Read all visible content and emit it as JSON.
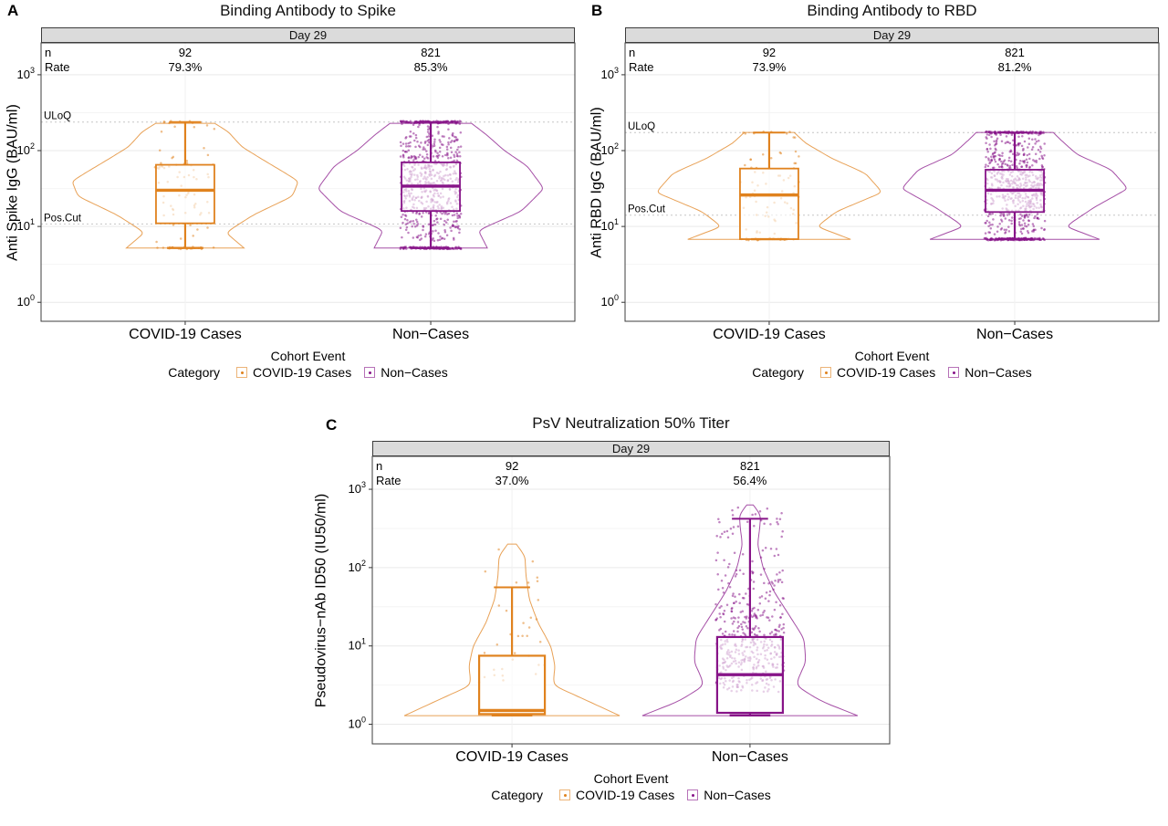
{
  "figure": {
    "style": {
      "background": "#ffffff",
      "facet_strip_fill": "#DBDBDB",
      "orange": "#E0821E",
      "purple": "#871488",
      "grid_major": "#E9E9E9",
      "grid_minor": "#F4F4F4",
      "reference_line": "#C6C6C6",
      "plot_border": "#3C3C3C"
    }
  },
  "chart_data": [
    {
      "type": "violin+box+jitter",
      "panel_letter": "A",
      "title": "Binding Antibody to Spike",
      "facet_label": "Day 29",
      "xlabel": "Cohort Event",
      "ylabel": "Anti Spike IgG (BAU/ml)",
      "y_scale": "log10",
      "y_tick_exponents": [
        0,
        1,
        2,
        3
      ],
      "ylim_log10": [
        -0.25,
        3.42
      ],
      "grid": "horizontal major+minor, faint vertical at groups",
      "legend_title": "Category",
      "legend_position": "bottom",
      "annotation_row_labels": [
        "n",
        "Rate"
      ],
      "reference_lines": [
        {
          "label": "ULoQ",
          "value": 238
        },
        {
          "label": "Pos.Cut",
          "value": 10.8
        }
      ],
      "groups": [
        {
          "name": "COVID-19 Cases",
          "color": "#E0821E",
          "n": 92,
          "response_rate": "79.3%",
          "box": {
            "whisker_low": 5.2,
            "q1": 11,
            "median": 30,
            "q3": 65,
            "whisker_high": 238
          },
          "points": {
            "mode": "all-with-floor",
            "floor_value": 5.2,
            "at_uloq_fraction": 0.1,
            "sample_range_log10": [
              0.8,
              2.36
            ]
          },
          "violin_profile_log10": [
            [
              0.716,
              0.52
            ],
            [
              0.92,
              0.36
            ],
            [
              1.15,
              0.6
            ],
            [
              1.4,
              0.95
            ],
            [
              1.6,
              1.0
            ],
            [
              1.85,
              0.72
            ],
            [
              2.05,
              0.5
            ],
            [
              2.25,
              0.38
            ],
            [
              2.36,
              0.26
            ]
          ]
        },
        {
          "name": "Non−Cases",
          "color": "#871488",
          "n": 821,
          "response_rate": "85.3%",
          "box": {
            "whisker_low": 5.2,
            "q1": 16,
            "median": 34,
            "q3": 70,
            "whisker_high": 238
          },
          "points": {
            "mode": "all-with-floor",
            "floor_value": 5.2,
            "at_uloq_fraction": 0.17,
            "sample_range_log10": [
              0.8,
              2.36
            ]
          },
          "violin_profile_log10": [
            [
              0.716,
              0.5
            ],
            [
              0.95,
              0.42
            ],
            [
              1.2,
              0.8
            ],
            [
              1.5,
              1.0
            ],
            [
              1.8,
              0.85
            ],
            [
              2.0,
              0.65
            ],
            [
              2.2,
              0.5
            ],
            [
              2.36,
              0.36
            ]
          ]
        }
      ]
    },
    {
      "type": "violin+box+jitter",
      "panel_letter": "B",
      "title": "Binding Antibody to RBD",
      "facet_label": "Day 29",
      "xlabel": "Cohort Event",
      "ylabel": "Anti RBD IgG (BAU/ml)",
      "y_scale": "log10",
      "y_tick_exponents": [
        0,
        1,
        2,
        3
      ],
      "ylim_log10": [
        -0.25,
        3.42
      ],
      "grid": "horizontal major+minor, faint vertical at groups",
      "legend_title": "Category",
      "legend_position": "bottom",
      "annotation_row_labels": [
        "n",
        "Rate"
      ],
      "reference_lines": [
        {
          "label": "ULoQ",
          "value": 173
        },
        {
          "label": "Pos.Cut",
          "value": 14.1
        }
      ],
      "groups": [
        {
          "name": "COVID-19 Cases",
          "color": "#E0821E",
          "n": 92,
          "response_rate": "73.9%",
          "box": {
            "whisker_low": 6.8,
            "q1": 6.8,
            "median": 26,
            "q3": 58,
            "whisker_high": 173
          },
          "points": {
            "mode": "all-with-floor",
            "floor_value": 6.8,
            "at_uloq_fraction": 0.1,
            "sample_range_log10": [
              0.9,
              2.23
            ]
          },
          "violin_profile_log10": [
            [
              0.83,
              0.72
            ],
            [
              1.0,
              0.42
            ],
            [
              1.2,
              0.6
            ],
            [
              1.45,
              1.0
            ],
            [
              1.7,
              0.85
            ],
            [
              1.9,
              0.55
            ],
            [
              2.1,
              0.32
            ],
            [
              2.24,
              0.22
            ]
          ]
        },
        {
          "name": "Non−Cases",
          "color": "#871488",
          "n": 821,
          "response_rate": "81.2%",
          "box": {
            "whisker_low": 6.8,
            "q1": 15.5,
            "median": 30,
            "q3": 56,
            "whisker_high": 173
          },
          "points": {
            "mode": "all-with-floor",
            "floor_value": 6.8,
            "at_uloq_fraction": 0.15,
            "sample_range_log10": [
              0.9,
              2.23
            ]
          },
          "violin_profile_log10": [
            [
              0.83,
              0.75
            ],
            [
              1.0,
              0.45
            ],
            [
              1.25,
              0.7
            ],
            [
              1.5,
              1.0
            ],
            [
              1.75,
              0.85
            ],
            [
              1.95,
              0.55
            ],
            [
              2.15,
              0.4
            ],
            [
              2.24,
              0.34
            ]
          ]
        }
      ]
    },
    {
      "type": "violin+box+jitter",
      "panel_letter": "C",
      "title": "PsV Neutralization 50% Titer",
      "facet_label": "Day 29",
      "xlabel": "Cohort Event",
      "ylabel": "Pseudovirus−nAb ID50 (IU50/ml)",
      "y_scale": "log10",
      "y_tick_exponents": [
        0,
        1,
        2,
        3
      ],
      "ylim_log10": [
        -0.25,
        3.42
      ],
      "grid": "horizontal major+minor, faint vertical at groups",
      "legend_title": "Category",
      "legend_position": "bottom",
      "annotation_row_labels": [
        "n",
        "Rate"
      ],
      "reference_lines": [],
      "groups": [
        {
          "name": "COVID-19 Cases",
          "color": "#E0821E",
          "n": 92,
          "response_rate": "37.0%",
          "box": {
            "whisker_low": 1.3,
            "q1": 1.35,
            "median": 1.5,
            "q3": 7.5,
            "whisker_high": 56
          },
          "points": {
            "mode": "responders-only",
            "sample_range_log10": [
              0.5,
              2.3
            ]
          },
          "violin_profile_log10": [
            [
              0.11,
              1.0
            ],
            [
              0.3,
              0.7
            ],
            [
              0.5,
              0.38
            ],
            [
              0.75,
              0.4
            ],
            [
              1.0,
              0.36
            ],
            [
              1.3,
              0.24
            ],
            [
              1.6,
              0.16
            ],
            [
              1.9,
              0.13
            ],
            [
              2.15,
              0.12
            ],
            [
              2.3,
              0.04
            ]
          ]
        },
        {
          "name": "Non−Cases",
          "color": "#871488",
          "n": 821,
          "response_rate": "56.4%",
          "box": {
            "whisker_low": 1.3,
            "q1": 1.4,
            "median": 4.3,
            "q3": 13,
            "whisker_high": 420
          },
          "points": {
            "mode": "responders-only",
            "sample_range_log10": [
              0.42,
              2.8
            ]
          },
          "violin_profile_log10": [
            [
              0.11,
              1.0
            ],
            [
              0.3,
              0.65
            ],
            [
              0.5,
              0.42
            ],
            [
              0.8,
              0.52
            ],
            [
              1.1,
              0.5
            ],
            [
              1.4,
              0.36
            ],
            [
              1.7,
              0.22
            ],
            [
              2.0,
              0.12
            ],
            [
              2.3,
              0.07
            ],
            [
              2.5,
              0.09
            ],
            [
              2.68,
              0.1
            ],
            [
              2.8,
              0.03
            ]
          ]
        }
      ]
    }
  ]
}
